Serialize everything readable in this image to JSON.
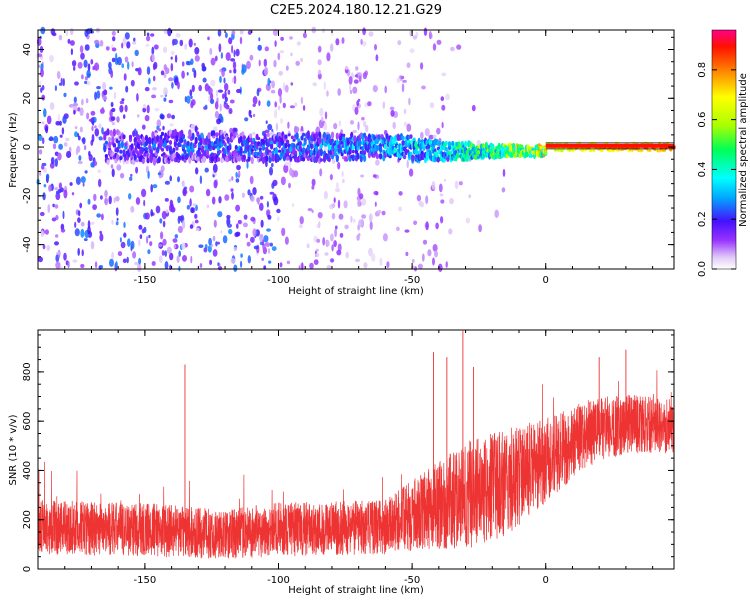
{
  "title": "C2E5.2024.180.12.21.G29",
  "chart_data": [
    {
      "type": "heatmap",
      "xlabel": "Height of straight line (km)",
      "ylabel": "Frequency (Hz)",
      "xlim": [
        -190,
        48
      ],
      "ylim": [
        -50,
        48
      ],
      "xticks": [
        -150,
        -100,
        -50,
        0
      ],
      "yticks": [
        -40,
        -20,
        0,
        20,
        40
      ],
      "colorbar": {
        "label": "Normalized spectral amplitude",
        "range": [
          0.0,
          0.96
        ],
        "ticks": [
          0.0,
          0.2,
          0.4,
          0.6,
          0.8
        ]
      },
      "central_band": {
        "center_frequency_hz": 0,
        "points": [
          {
            "x": -160,
            "amp": 0.25,
            "width": 8
          },
          {
            "x": -120,
            "amp": 0.28,
            "width": 7
          },
          {
            "x": -90,
            "amp": 0.3,
            "width": 7
          },
          {
            "x": -60,
            "amp": 0.35,
            "width": 6
          },
          {
            "x": -45,
            "amp": 0.42,
            "width": 5
          },
          {
            "x": -30,
            "amp": 0.5,
            "width": 4
          },
          {
            "x": -15,
            "amp": 0.6,
            "width": 3
          },
          {
            "x": 0,
            "amp": 0.75,
            "width": 2
          },
          {
            "x": 15,
            "amp": 0.85,
            "width": 2
          },
          {
            "x": 47,
            "amp": 0.95,
            "width": 2
          }
        ]
      }
    },
    {
      "type": "line",
      "xlabel": "Height of straight line (km)",
      "ylabel": "SNR (10 * v/v)",
      "xlim": [
        -190,
        48
      ],
      "ylim": [
        0,
        970
      ],
      "xticks": [
        -150,
        -100,
        -50,
        0
      ],
      "yticks": [
        0,
        200,
        400,
        600,
        800
      ],
      "color": "#ee3333",
      "trend": [
        {
          "x": -190,
          "mean": 170,
          "spread": 110
        },
        {
          "x": -150,
          "mean": 160,
          "spread": 110
        },
        {
          "x": -120,
          "mean": 140,
          "spread": 100
        },
        {
          "x": -100,
          "mean": 160,
          "spread": 110
        },
        {
          "x": -60,
          "mean": 170,
          "spread": 110
        },
        {
          "x": -45,
          "mean": 240,
          "spread": 160
        },
        {
          "x": -30,
          "mean": 300,
          "spread": 220
        },
        {
          "x": -15,
          "mean": 350,
          "spread": 220
        },
        {
          "x": 0,
          "mean": 440,
          "spread": 170
        },
        {
          "x": 15,
          "mean": 550,
          "spread": 140
        },
        {
          "x": 30,
          "mean": 590,
          "spread": 120
        },
        {
          "x": 47,
          "mean": 580,
          "spread": 110
        }
      ],
      "spikes": [
        {
          "x": -135,
          "y": 830
        },
        {
          "x": -42,
          "y": 880
        },
        {
          "x": -37,
          "y": 860
        },
        {
          "x": -31,
          "y": 970
        },
        {
          "x": -27,
          "y": 820
        },
        {
          "x": 20,
          "y": 860
        },
        {
          "x": 30,
          "y": 890
        }
      ]
    }
  ]
}
